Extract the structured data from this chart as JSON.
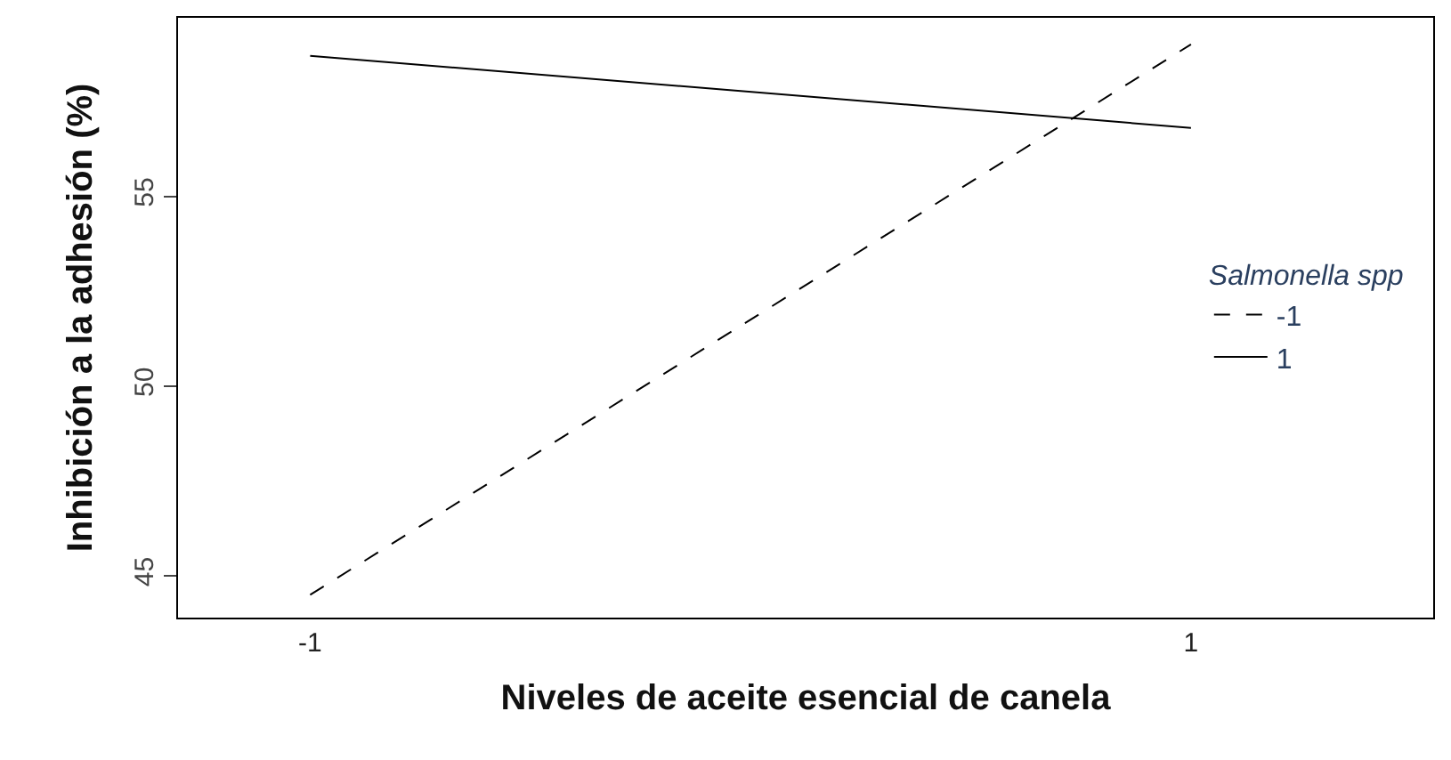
{
  "chart_data": {
    "type": "line",
    "xlabel": "Niveles de aceite esencial de canela",
    "ylabel": "Inhibición a la adhesión (%)",
    "legend_title": "Salmonella spp",
    "x": [
      -1,
      1
    ],
    "xlim": [
      -1.3,
      1.55
    ],
    "xticks": [
      -1,
      1
    ],
    "ylim": [
      43.9,
      59.7
    ],
    "yticks": [
      45,
      50,
      55
    ],
    "legend": "right",
    "marker": "none",
    "series": [
      {
        "name": "-1",
        "color": "#000000",
        "values": [
          44.5,
          59.0
        ],
        "line_style": "dashed"
      },
      {
        "name": "1",
        "color": "#000000",
        "values": [
          58.7,
          56.8
        ],
        "line_style": "solid"
      }
    ]
  }
}
